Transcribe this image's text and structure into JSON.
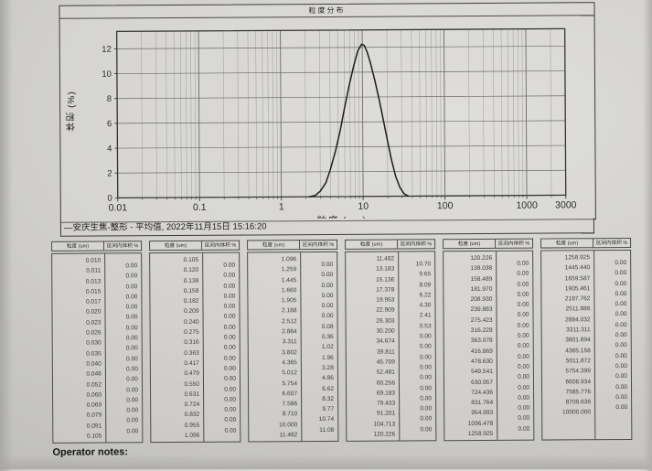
{
  "chart": {
    "title": "粒度分布",
    "xlabel": "粒度 (um)",
    "ylabel": "体积 (%)",
    "legend_marker": "—",
    "legend_label": "安庆生焦-整形 - 平均值, 2022年11月15日 15:16:20"
  },
  "chart_data": {
    "type": "line",
    "title": "粒度分布",
    "xlabel": "粒度 (um)",
    "ylabel": "体积 (%)",
    "xscale": "log",
    "xlim": [
      0.01,
      3000
    ],
    "ylim": [
      0,
      13.4
    ],
    "xticks": [
      0.01,
      0.1,
      1,
      10,
      100,
      1000,
      3000
    ],
    "xtick_labels": [
      "0.01",
      "0.1",
      "1",
      "10",
      "100",
      "1000",
      "3000"
    ],
    "yticks": [
      0,
      2,
      4,
      6,
      8,
      10,
      12
    ],
    "grid": true,
    "legend": "安庆生焦-整形 - 平均值, 2022年11月15日 15:16:20",
    "series": [
      {
        "name": "安庆生焦-整形 - 平均值",
        "x": [
          2.2,
          2.6,
          3.0,
          3.5,
          4.0,
          4.6,
          5.3,
          6.0,
          6.9,
          7.9,
          8.8,
          9.8,
          10.6,
          11.5,
          12.6,
          14.1,
          15.8,
          17.8,
          20.0,
          22.4,
          25.1,
          28.2,
          31.6,
          35.5
        ],
        "y": [
          0,
          0.1,
          0.45,
          1.1,
          2.2,
          3.6,
          5.3,
          7.1,
          9.0,
          10.6,
          11.7,
          12.25,
          12.15,
          11.6,
          10.7,
          9.4,
          7.9,
          6.2,
          4.5,
          2.9,
          1.6,
          0.7,
          0.2,
          0
        ]
      }
    ]
  },
  "tables": {
    "size_header": "粒度 (um)",
    "value_header": "区间内体积 %",
    "blocks": [
      {
        "sizes": [
          "0.010",
          "0.011",
          "0.013",
          "0.015",
          "0.017",
          "0.020",
          "0.023",
          "0.026",
          "0.030",
          "0.035",
          "0.040",
          "0.046",
          "0.052",
          "0.060",
          "0.069",
          "0.079",
          "0.091",
          "0.105"
        ],
        "values": [
          "0.00",
          "0.00",
          "0.00",
          "0.00",
          "0.00",
          "0.00",
          "0.00",
          "0.00",
          "0.00",
          "0.00",
          "0.00",
          "0.00",
          "0.00",
          "0.00",
          "0.00",
          "0.00",
          "0.00"
        ]
      },
      {
        "sizes": [
          "0.105",
          "0.120",
          "0.138",
          "0.158",
          "0.182",
          "0.209",
          "0.240",
          "0.275",
          "0.316",
          "0.363",
          "0.417",
          "0.479",
          "0.550",
          "0.631",
          "0.724",
          "0.832",
          "0.955",
          "1.096"
        ],
        "values": [
          "0.00",
          "0.00",
          "0.00",
          "0.00",
          "0.00",
          "0.00",
          "0.00",
          "0.00",
          "0.00",
          "0.00",
          "0.00",
          "0.00",
          "0.00",
          "0.00",
          "0.00",
          "0.00",
          "0.00"
        ]
      },
      {
        "sizes": [
          "1.096",
          "1.259",
          "1.445",
          "1.660",
          "1.905",
          "2.188",
          "2.512",
          "2.884",
          "3.311",
          "3.802",
          "4.365",
          "5.012",
          "5.754",
          "6.607",
          "7.586",
          "8.710",
          "10.000",
          "11.482"
        ],
        "values": [
          "0.00",
          "0.00",
          "0.00",
          "0.00",
          "0.00",
          "0.00",
          "0.08",
          "0.36",
          "1.02",
          "1.96",
          "3.28",
          "4.86",
          "6.62",
          "8.32",
          "9.77",
          "10.74",
          "11.08"
        ]
      },
      {
        "sizes": [
          "11.482",
          "13.183",
          "15.136",
          "17.378",
          "19.953",
          "22.909",
          "26.303",
          "30.200",
          "34.674",
          "39.811",
          "45.709",
          "52.481",
          "60.256",
          "69.183",
          "79.433",
          "91.201",
          "104.713",
          "120.226"
        ],
        "values": [
          "10.70",
          "9.65",
          "8.09",
          "6.22",
          "4.30",
          "2.41",
          "0.53",
          "0.00",
          "0.00",
          "0.00",
          "0.00",
          "0.00",
          "0.00",
          "0.00",
          "0.00",
          "0.00",
          "0.00"
        ]
      },
      {
        "sizes": [
          "120.226",
          "138.038",
          "158.489",
          "181.970",
          "208.930",
          "239.883",
          "275.423",
          "316.228",
          "363.078",
          "416.869",
          "478.630",
          "549.541",
          "630.957",
          "724.436",
          "831.764",
          "954.993",
          "1096.478",
          "1258.925"
        ],
        "values": [
          "0.00",
          "0.00",
          "0.00",
          "0.00",
          "0.00",
          "0.00",
          "0.00",
          "0.00",
          "0.00",
          "0.00",
          "0.00",
          "0.00",
          "0.00",
          "0.00",
          "0.00",
          "0.00",
          "0.00"
        ]
      },
      {
        "sizes": [
          "1258.925",
          "1445.440",
          "1659.587",
          "1905.461",
          "2187.762",
          "2511.886",
          "2884.032",
          "3311.311",
          "3801.894",
          "4365.158",
          "5011.872",
          "5754.399",
          "6606.934",
          "7585.776",
          "8709.636",
          "10000.000"
        ],
        "values": [
          "0.00",
          "0.00",
          "0.00",
          "0.00",
          "0.00",
          "0.00",
          "0.00",
          "0.00",
          "0.00",
          "0.00",
          "0.00",
          "0.00",
          "0.00",
          "0.00",
          "0.00"
        ]
      }
    ]
  },
  "footer": {
    "operator_notes_label": "Operator notes:"
  },
  "colors": {
    "paper": "#d2d1cd",
    "ink": "#2c2c2e",
    "grid_major": "#6a6a68",
    "grid_minor": "#a2a19e",
    "curve": "#1c1c1c"
  }
}
